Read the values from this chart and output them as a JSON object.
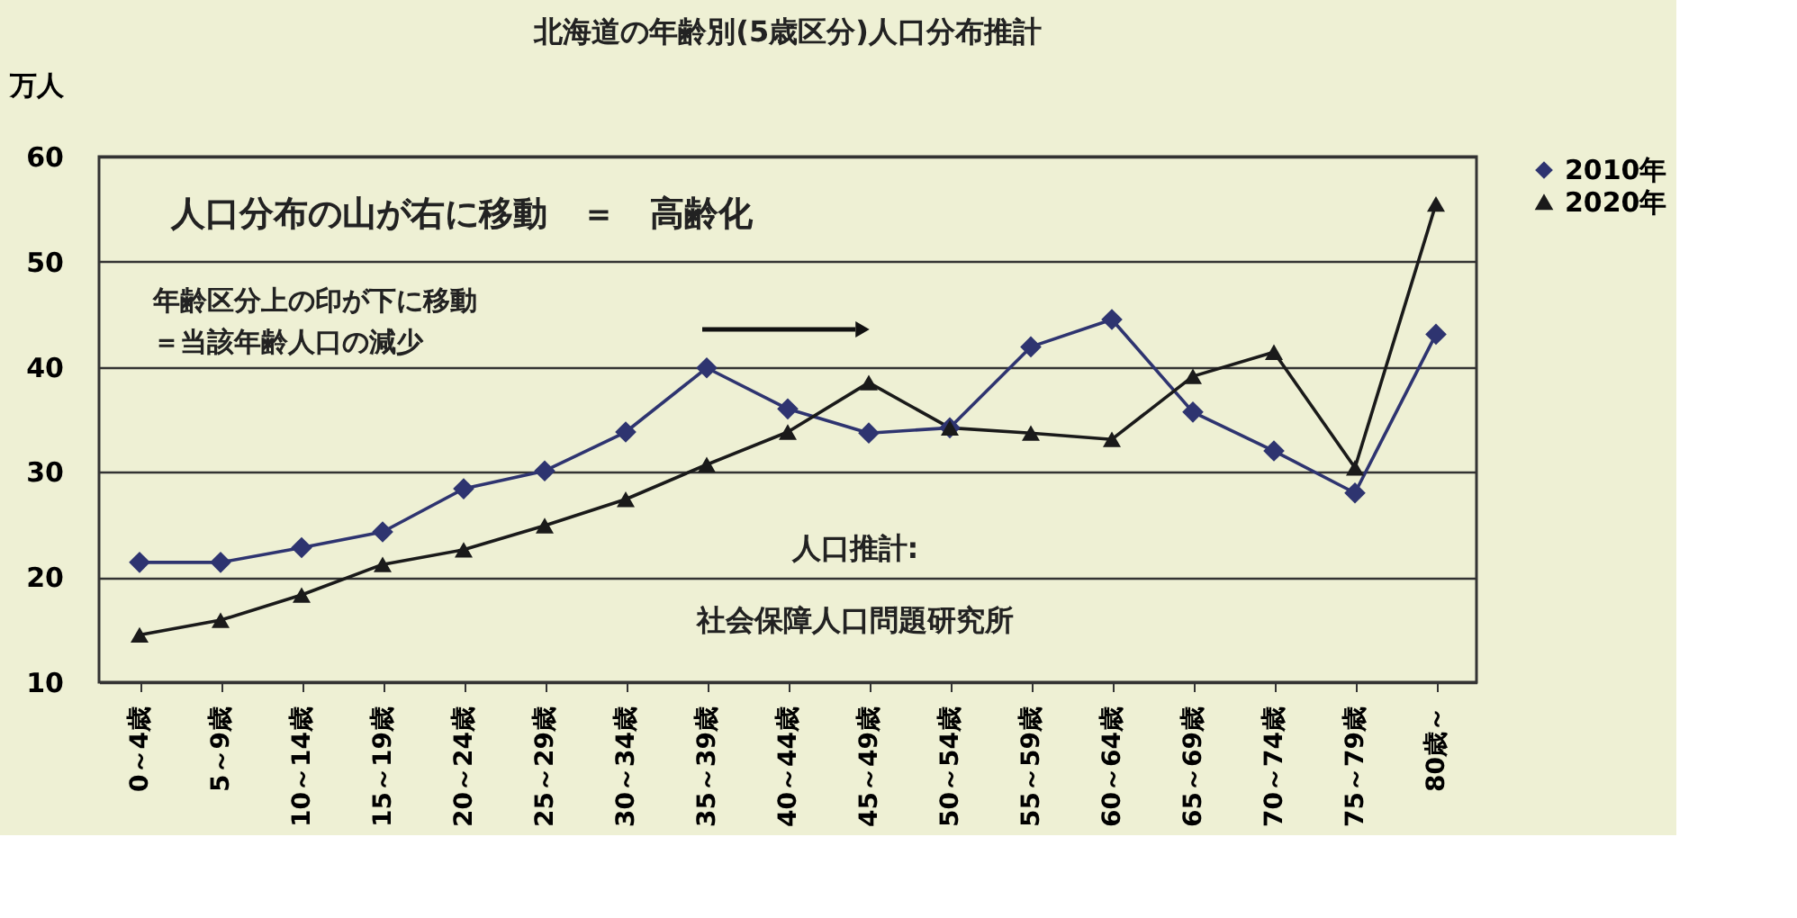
{
  "chart_data": {
    "type": "line",
    "title": "北海道の年齢別(5歳区分)人口分布推計",
    "ylabel": "万人",
    "categories": [
      "0～4歳",
      "5～9歳",
      "10～14歳",
      "15～19歳",
      "20～24歳",
      "25～29歳",
      "30～34歳",
      "35～39歳",
      "40～44歳",
      "45～49歳",
      "50～54歳",
      "55～59歳",
      "60～64歳",
      "65～69歳",
      "70～74歳",
      "75～79歳",
      "80歳～"
    ],
    "series": [
      {
        "name": "2010年",
        "color": "#2e3470",
        "marker": "diamond",
        "values": [
          21.4,
          21.4,
          22.8,
          24.3,
          28.4,
          30.1,
          33.8,
          39.9,
          36.0,
          33.7,
          34.2,
          41.9,
          44.5,
          35.7,
          32.0,
          28.0,
          43.1
        ]
      },
      {
        "name": "2020年",
        "color": "#1a1a1a",
        "marker": "triangle",
        "values": [
          14.5,
          15.9,
          18.3,
          21.2,
          22.6,
          24.9,
          27.4,
          30.7,
          33.8,
          38.5,
          34.2,
          33.7,
          33.1,
          39.1,
          41.4,
          30.4,
          55.5
        ]
      }
    ],
    "ylim": [
      10,
      60
    ],
    "yticks": [
      10,
      20,
      30,
      40,
      50,
      60
    ],
    "grid": "y",
    "legend": "right",
    "line_style": "solid",
    "annotations": [
      "人口分布の山が右に移動　＝　高齢化",
      "年齢区分上の印が下に移動",
      "＝当該年齢人口の減少",
      "人口推計:",
      "社会保障人口問題研究所"
    ]
  }
}
